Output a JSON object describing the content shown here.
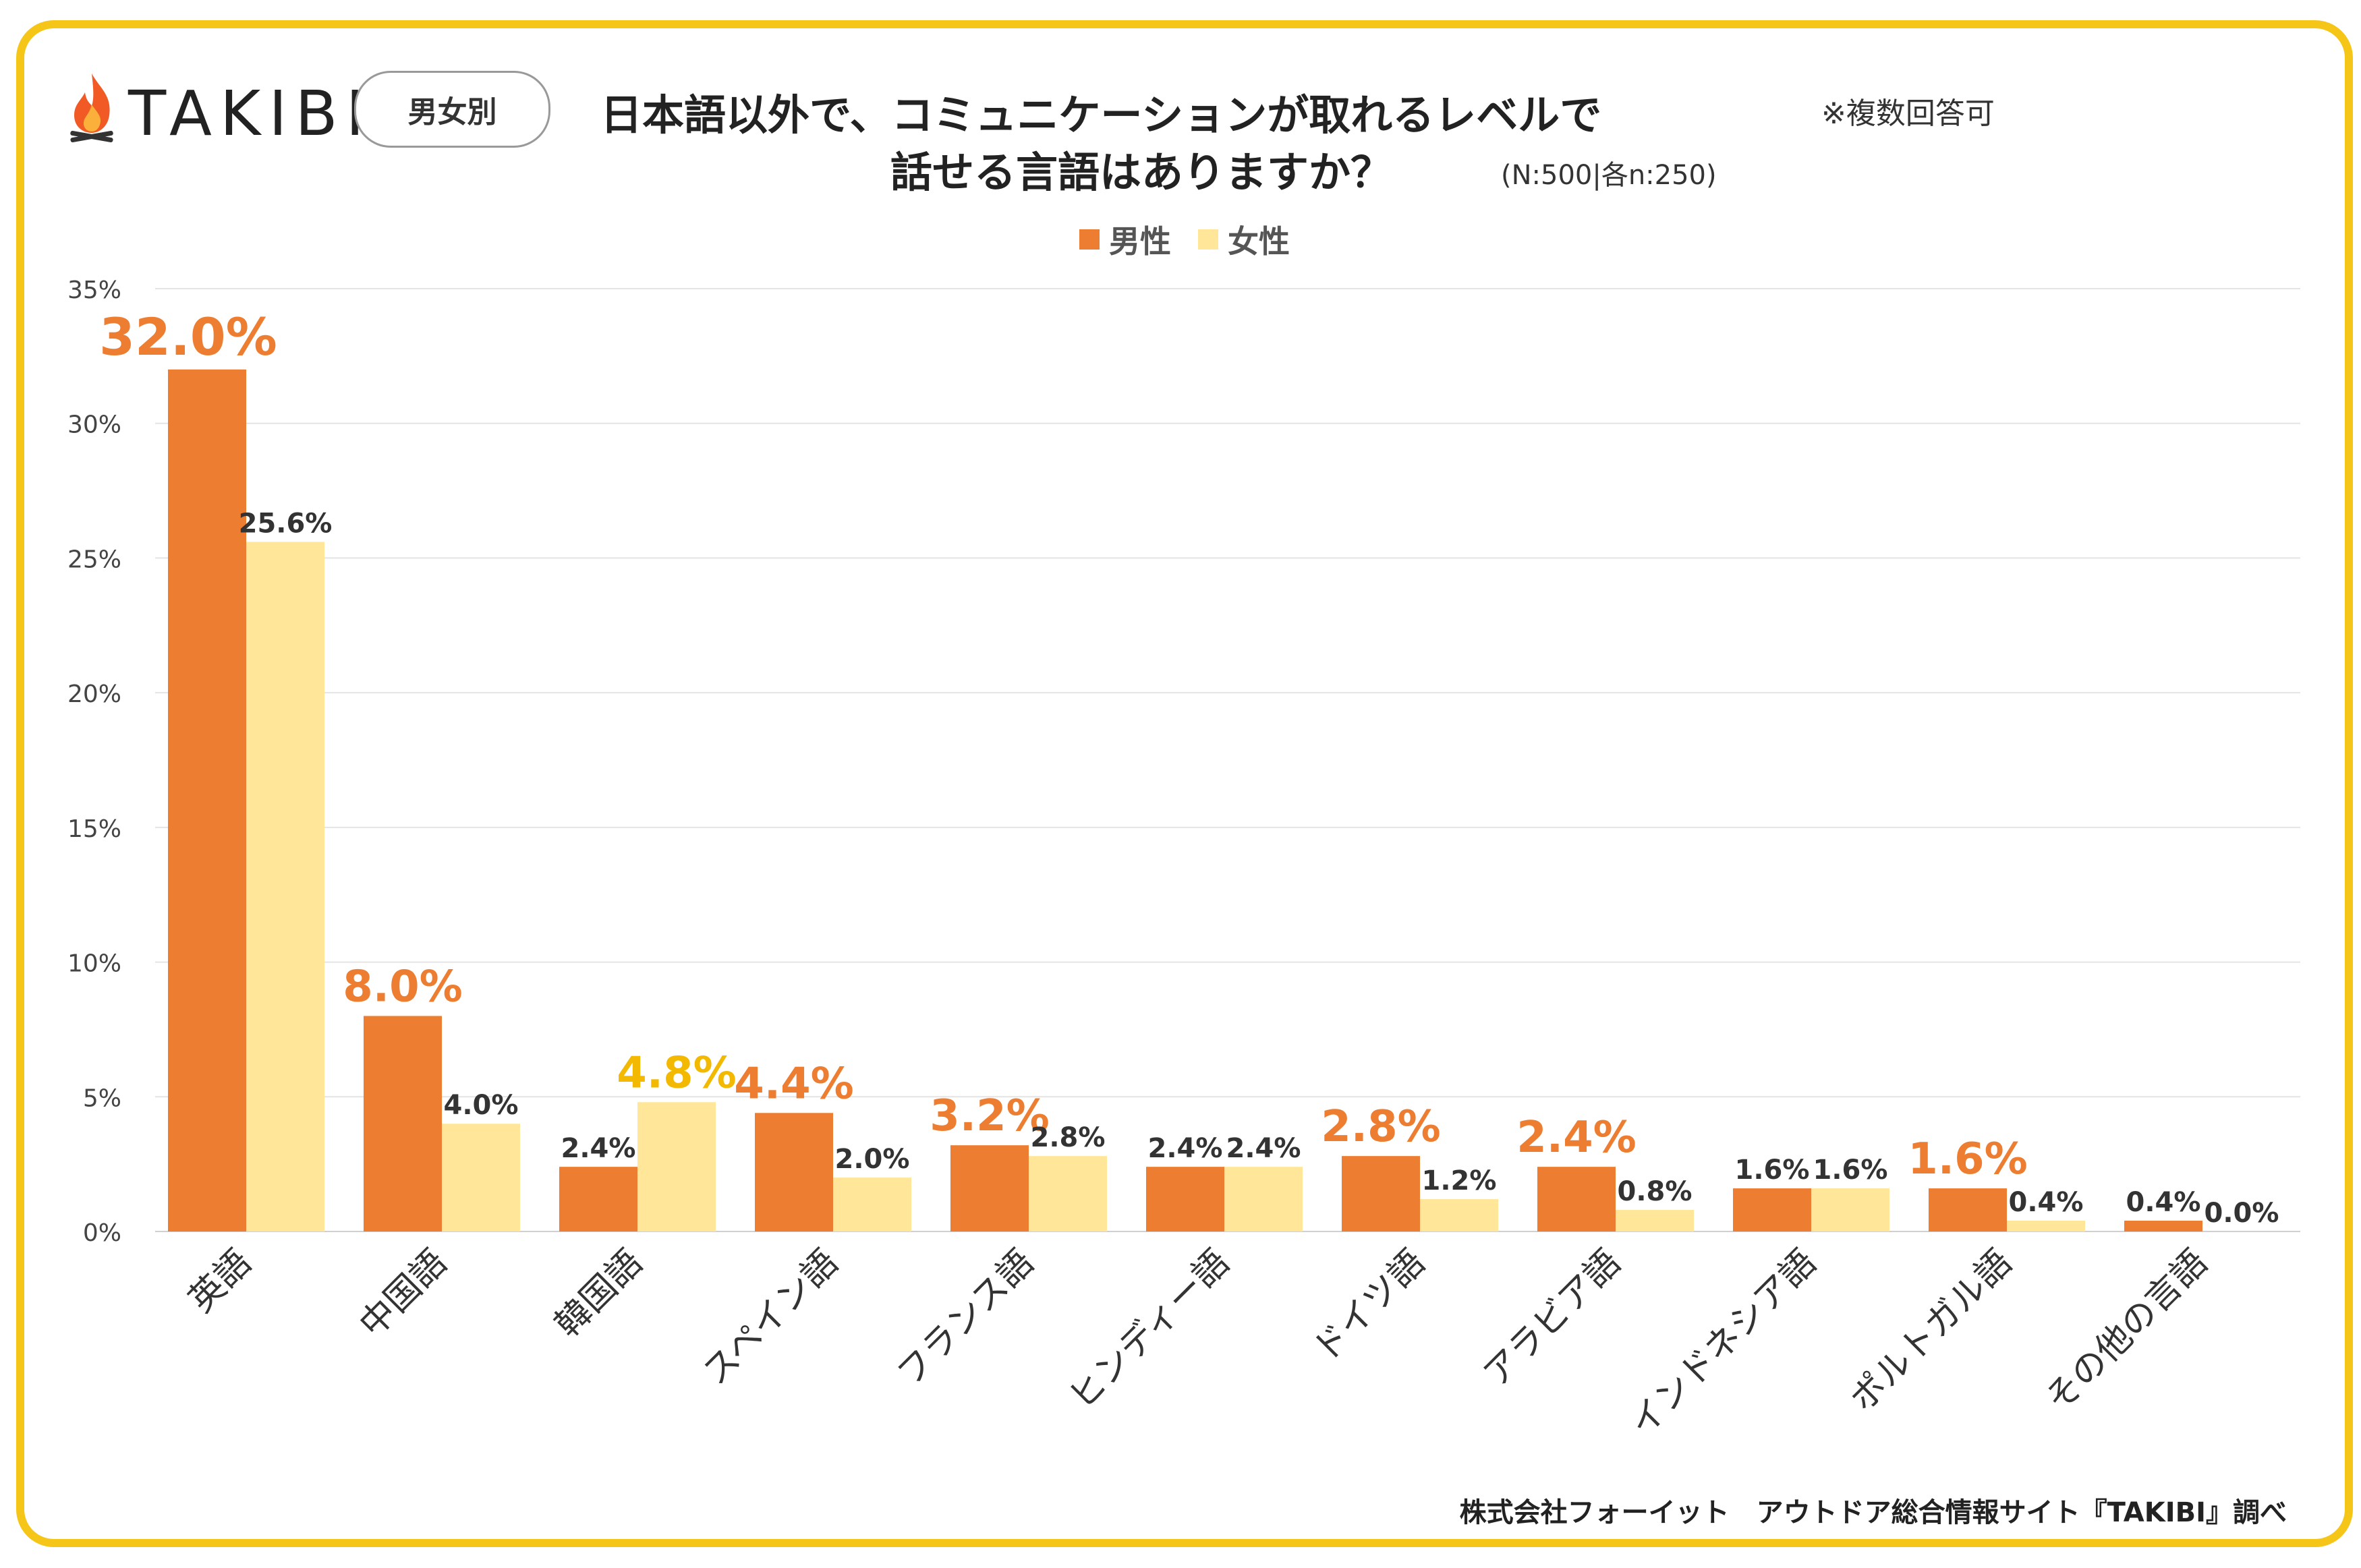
{
  "header": {
    "logo_text": "TAKIBI",
    "badge": "男女別",
    "title_line1": "日本語以外で、コミュニケーションが取れるレベルで",
    "title_line2": "話せる言語はありますか？",
    "note": "※複数回答可",
    "sample": "(N:500|各n:250)"
  },
  "footer": "株式会社フォーイット　アウトドア総合情報サイト『TAKIBI』調べ",
  "colors": {
    "male": "#ED7D31",
    "female": "#FFE699",
    "highlight_male": "#ED7D31",
    "highlight_female": "#F2B900",
    "frame": "#F5C518"
  },
  "chart_data": {
    "type": "bar",
    "categories": [
      "英語",
      "中国語",
      "韓国語",
      "スペイン語",
      "フランス語",
      "ヒンディー語",
      "ドイツ語",
      "アラビア語",
      "インドネシア語",
      "ポルトガル語",
      "その他の言語"
    ],
    "series": [
      {
        "name": "男性",
        "values": [
          32.0,
          8.0,
          2.4,
          4.4,
          3.2,
          2.4,
          2.8,
          2.4,
          1.6,
          1.6,
          0.4
        ]
      },
      {
        "name": "女性",
        "values": [
          25.6,
          4.0,
          4.8,
          2.0,
          2.8,
          2.4,
          1.2,
          0.8,
          1.6,
          0.4,
          0.0
        ]
      }
    ],
    "labels": {
      "male": [
        "32.0%",
        "8.0%",
        "2.4%",
        "4.4%",
        "3.2%",
        "2.4%",
        "2.8%",
        "2.4%",
        "1.6%",
        "1.6%",
        "0.4%"
      ],
      "female": [
        "25.6%",
        "4.0%",
        "4.8%",
        "2.0%",
        "2.8%",
        "2.4%",
        "1.2%",
        "0.8%",
        "1.6%",
        "0.4%",
        "0.0%"
      ]
    },
    "highlight": {
      "male": [
        true,
        true,
        false,
        true,
        true,
        false,
        true,
        true,
        false,
        true,
        false
      ],
      "female": [
        false,
        false,
        true,
        false,
        false,
        false,
        false,
        false,
        false,
        false,
        false
      ]
    },
    "ylim": [
      0,
      35
    ],
    "yticks": [
      0,
      5,
      10,
      15,
      20,
      25,
      30,
      35
    ],
    "ytick_labels": [
      "0%",
      "5%",
      "10%",
      "15%",
      "20%",
      "25%",
      "30%",
      "35%"
    ],
    "grid": true,
    "legend_position": "top-center"
  }
}
